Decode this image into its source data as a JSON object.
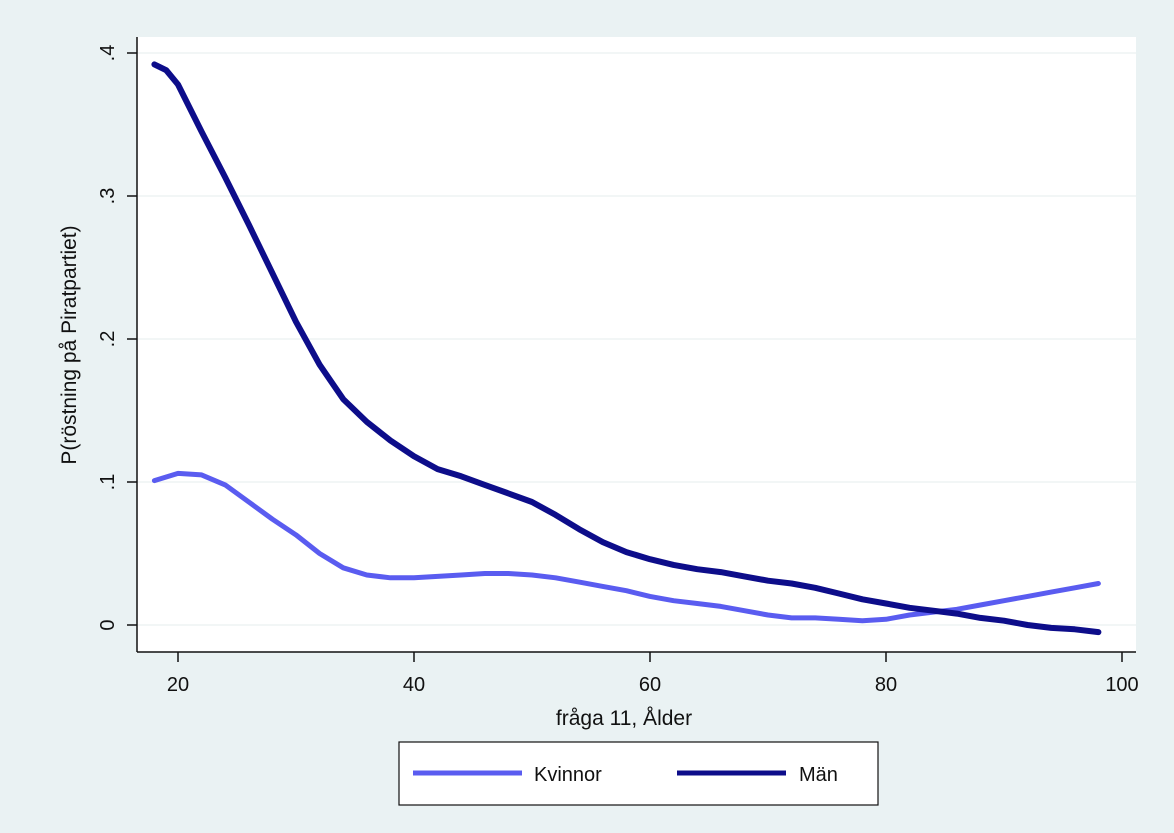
{
  "chart_data": {
    "type": "line",
    "title": "",
    "xlabel": "fråga 11, Ålder",
    "ylabel": "P(röstning på Piratpartiet)",
    "xlim": [
      18,
      100
    ],
    "ylim": [
      -0.02,
      0.4
    ],
    "x_ticks": [
      20,
      40,
      60,
      80,
      100
    ],
    "x_tick_labels": [
      "20",
      "40",
      "60",
      "80",
      "100"
    ],
    "y_ticks": [
      0,
      0.1,
      0.2,
      0.3,
      0.4
    ],
    "y_tick_labels": [
      "0",
      ".1",
      ".2",
      ".3",
      ".4"
    ],
    "grid": true,
    "legend_position": "bottom",
    "series": [
      {
        "name": "Kvinnor",
        "color": "#5a5cf0",
        "points": [
          [
            18,
            0.101
          ],
          [
            20,
            0.106
          ],
          [
            22,
            0.105
          ],
          [
            24,
            0.098
          ],
          [
            26,
            0.086
          ],
          [
            28,
            0.074
          ],
          [
            30,
            0.063
          ],
          [
            32,
            0.05
          ],
          [
            34,
            0.04
          ],
          [
            36,
            0.035
          ],
          [
            38,
            0.033
          ],
          [
            40,
            0.033
          ],
          [
            42,
            0.034
          ],
          [
            44,
            0.035
          ],
          [
            46,
            0.036
          ],
          [
            48,
            0.036
          ],
          [
            50,
            0.035
          ],
          [
            52,
            0.033
          ],
          [
            54,
            0.03
          ],
          [
            56,
            0.027
          ],
          [
            58,
            0.024
          ],
          [
            60,
            0.02
          ],
          [
            62,
            0.017
          ],
          [
            64,
            0.015
          ],
          [
            66,
            0.013
          ],
          [
            68,
            0.01
          ],
          [
            70,
            0.007
          ],
          [
            72,
            0.005
          ],
          [
            74,
            0.005
          ],
          [
            76,
            0.004
          ],
          [
            78,
            0.003
          ],
          [
            80,
            0.004
          ],
          [
            82,
            0.007
          ],
          [
            84,
            0.009
          ],
          [
            86,
            0.011
          ],
          [
            88,
            0.014
          ],
          [
            90,
            0.017
          ],
          [
            92,
            0.02
          ],
          [
            94,
            0.023
          ],
          [
            96,
            0.026
          ],
          [
            98,
            0.029
          ]
        ]
      },
      {
        "name": "Män",
        "color": "#0d0d8a",
        "points": [
          [
            18,
            0.392
          ],
          [
            19,
            0.388
          ],
          [
            20,
            0.378
          ],
          [
            22,
            0.345
          ],
          [
            24,
            0.313
          ],
          [
            26,
            0.28
          ],
          [
            28,
            0.246
          ],
          [
            30,
            0.212
          ],
          [
            32,
            0.182
          ],
          [
            34,
            0.158
          ],
          [
            36,
            0.142
          ],
          [
            38,
            0.129
          ],
          [
            40,
            0.118
          ],
          [
            42,
            0.109
          ],
          [
            44,
            0.104
          ],
          [
            46,
            0.098
          ],
          [
            48,
            0.092
          ],
          [
            50,
            0.086
          ],
          [
            52,
            0.077
          ],
          [
            54,
            0.067
          ],
          [
            56,
            0.058
          ],
          [
            58,
            0.051
          ],
          [
            60,
            0.046
          ],
          [
            62,
            0.042
          ],
          [
            64,
            0.039
          ],
          [
            66,
            0.037
          ],
          [
            68,
            0.034
          ],
          [
            70,
            0.031
          ],
          [
            72,
            0.029
          ],
          [
            74,
            0.026
          ],
          [
            76,
            0.022
          ],
          [
            78,
            0.018
          ],
          [
            80,
            0.015
          ],
          [
            82,
            0.012
          ],
          [
            84,
            0.01
          ],
          [
            86,
            0.008
          ],
          [
            88,
            0.005
          ],
          [
            90,
            0.003
          ],
          [
            92,
            0.0
          ],
          [
            94,
            -0.002
          ],
          [
            96,
            -0.003
          ],
          [
            98,
            -0.005
          ]
        ]
      }
    ]
  }
}
